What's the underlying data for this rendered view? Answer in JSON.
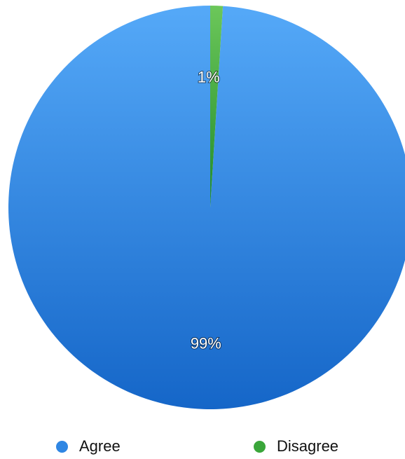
{
  "chart_data": {
    "type": "pie",
    "categories": [
      "Agree",
      "Disagree"
    ],
    "values": [
      99,
      1
    ],
    "labels": [
      "99%",
      "1%"
    ],
    "colors": [
      "#2f86e3",
      "#3aa63a"
    ],
    "legend": "bottom",
    "title": ""
  },
  "legend": {
    "items": [
      {
        "label": "Agree",
        "color": "#2f86e3"
      },
      {
        "label": "Disagree",
        "color": "#3aa63a"
      }
    ]
  }
}
